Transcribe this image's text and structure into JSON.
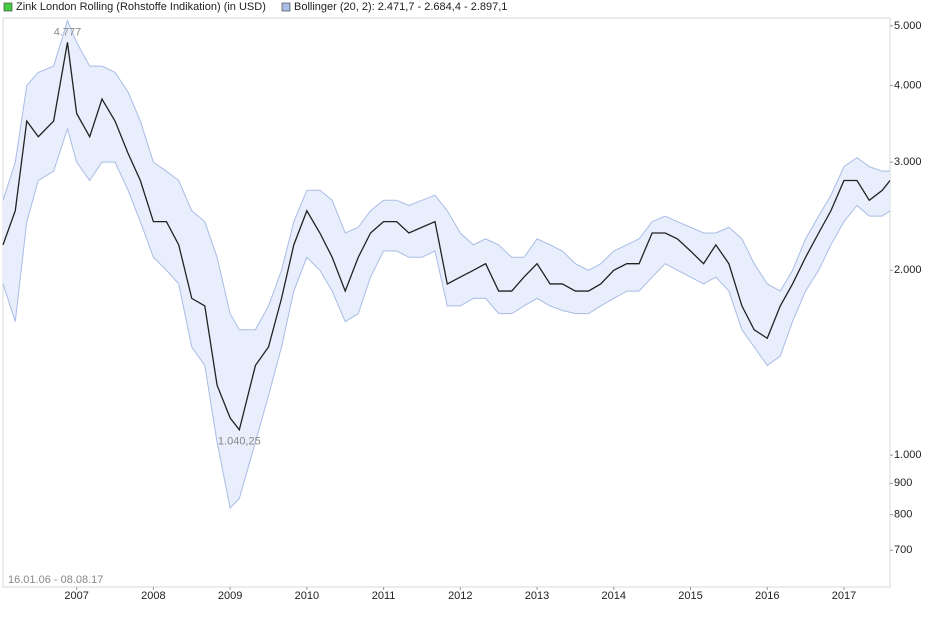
{
  "chart_data": {
    "type": "line",
    "series": [
      {
        "name": "Zink London Rolling (Rohstoffe Indikation) (in USD)",
        "color": "#222222",
        "legend_color": "#44cc44",
        "values": [
          2200,
          2500,
          3500,
          3300,
          3500,
          4700,
          3600,
          3300,
          3800,
          3500,
          3100,
          2800,
          2400,
          2400,
          2200,
          1800,
          1750,
          1300,
          1150,
          1100,
          1400,
          1500,
          1800,
          2200,
          2500,
          2300,
          2100,
          1850,
          2100,
          2300,
          2400,
          2400,
          2300,
          2350,
          2400,
          1900,
          1950,
          2000,
          2050,
          1850,
          1850,
          1950,
          2050,
          1900,
          1900,
          1850,
          1850,
          1900,
          2000,
          2050,
          2050,
          2300,
          2300,
          2250,
          2150,
          2050,
          2200,
          2050,
          1750,
          1600,
          1550,
          1750,
          1900,
          2100,
          2300,
          2500,
          2800,
          2800,
          2600,
          2700,
          2800
        ]
      }
    ],
    "band": {
      "name": "Bollinger (20, 2): 2.471,7 - 2.684,4 - 2.897,1",
      "color": "#a9bde6",
      "fill": "#e8eefb",
      "upper": [
        2600,
        3000,
        4000,
        4200,
        4300,
        5100,
        4700,
        4300,
        4300,
        4200,
        3900,
        3500,
        3000,
        2900,
        2800,
        2500,
        2400,
        2100,
        1700,
        1600,
        1600,
        1750,
        2000,
        2400,
        2700,
        2700,
        2600,
        2300,
        2350,
        2500,
        2600,
        2600,
        2550,
        2600,
        2650,
        2500,
        2300,
        2200,
        2250,
        2200,
        2100,
        2100,
        2250,
        2200,
        2150,
        2050,
        2000,
        2050,
        2150,
        2200,
        2250,
        2400,
        2450,
        2400,
        2350,
        2300,
        2300,
        2350,
        2250,
        2050,
        1900,
        1850,
        2000,
        2250,
        2450,
        2650,
        2950,
        3050,
        2950,
        2900,
        2900
      ],
      "lower": [
        1900,
        1650,
        2400,
        2800,
        2900,
        3400,
        3000,
        2800,
        3000,
        3000,
        2700,
        2400,
        2100,
        2000,
        1900,
        1500,
        1400,
        1050,
        820,
        850,
        1050,
        1250,
        1500,
        1850,
        2100,
        2000,
        1850,
        1650,
        1700,
        1950,
        2150,
        2150,
        2100,
        2100,
        2150,
        1750,
        1750,
        1800,
        1800,
        1700,
        1700,
        1750,
        1800,
        1750,
        1720,
        1700,
        1700,
        1750,
        1800,
        1850,
        1850,
        1950,
        2050,
        2000,
        1950,
        1900,
        1950,
        1850,
        1600,
        1500,
        1400,
        1450,
        1650,
        1850,
        2000,
        2200,
        2400,
        2550,
        2450,
        2450,
        2500
      ]
    },
    "x": [
      2006.04,
      2006.2,
      2006.35,
      2006.5,
      2006.7,
      2006.88,
      2007.0,
      2007.17,
      2007.33,
      2007.5,
      2007.67,
      2007.83,
      2008.0,
      2008.17,
      2008.33,
      2008.5,
      2008.67,
      2008.83,
      2009.0,
      2009.12,
      2009.33,
      2009.5,
      2009.67,
      2009.83,
      2010.0,
      2010.17,
      2010.33,
      2010.5,
      2010.67,
      2010.83,
      2011.0,
      2011.17,
      2011.33,
      2011.5,
      2011.67,
      2011.83,
      2012.0,
      2012.17,
      2012.33,
      2012.5,
      2012.67,
      2012.83,
      2013.0,
      2013.17,
      2013.33,
      2013.5,
      2013.67,
      2013.83,
      2014.0,
      2014.17,
      2014.33,
      2014.5,
      2014.67,
      2014.83,
      2015.0,
      2015.17,
      2015.33,
      2015.5,
      2015.67,
      2015.83,
      2016.0,
      2016.17,
      2016.33,
      2016.5,
      2016.67,
      2016.83,
      2017.0,
      2017.17,
      2017.33,
      2017.5,
      2017.6
    ],
    "xlim": [
      2006.04,
      2017.6
    ],
    "xticks": [
      2007,
      2008,
      2009,
      2010,
      2011,
      2012,
      2013,
      2014,
      2015,
      2016,
      2017
    ],
    "ylim": [
      610,
      5150
    ],
    "yticks": [
      {
        "value": 5000,
        "label": "5.000"
      },
      {
        "value": 4000,
        "label": "4.000"
      },
      {
        "value": 3000,
        "label": "3.000"
      },
      {
        "value": 2000,
        "label": "2.000"
      },
      {
        "value": 1000,
        "label": "1.000"
      },
      900,
      800,
      700
    ],
    "log_scale": true,
    "grid": false,
    "annotations": {
      "max": "4.777",
      "min": "1.040,25",
      "range": "16.01.06 - 08.08.17"
    }
  }
}
